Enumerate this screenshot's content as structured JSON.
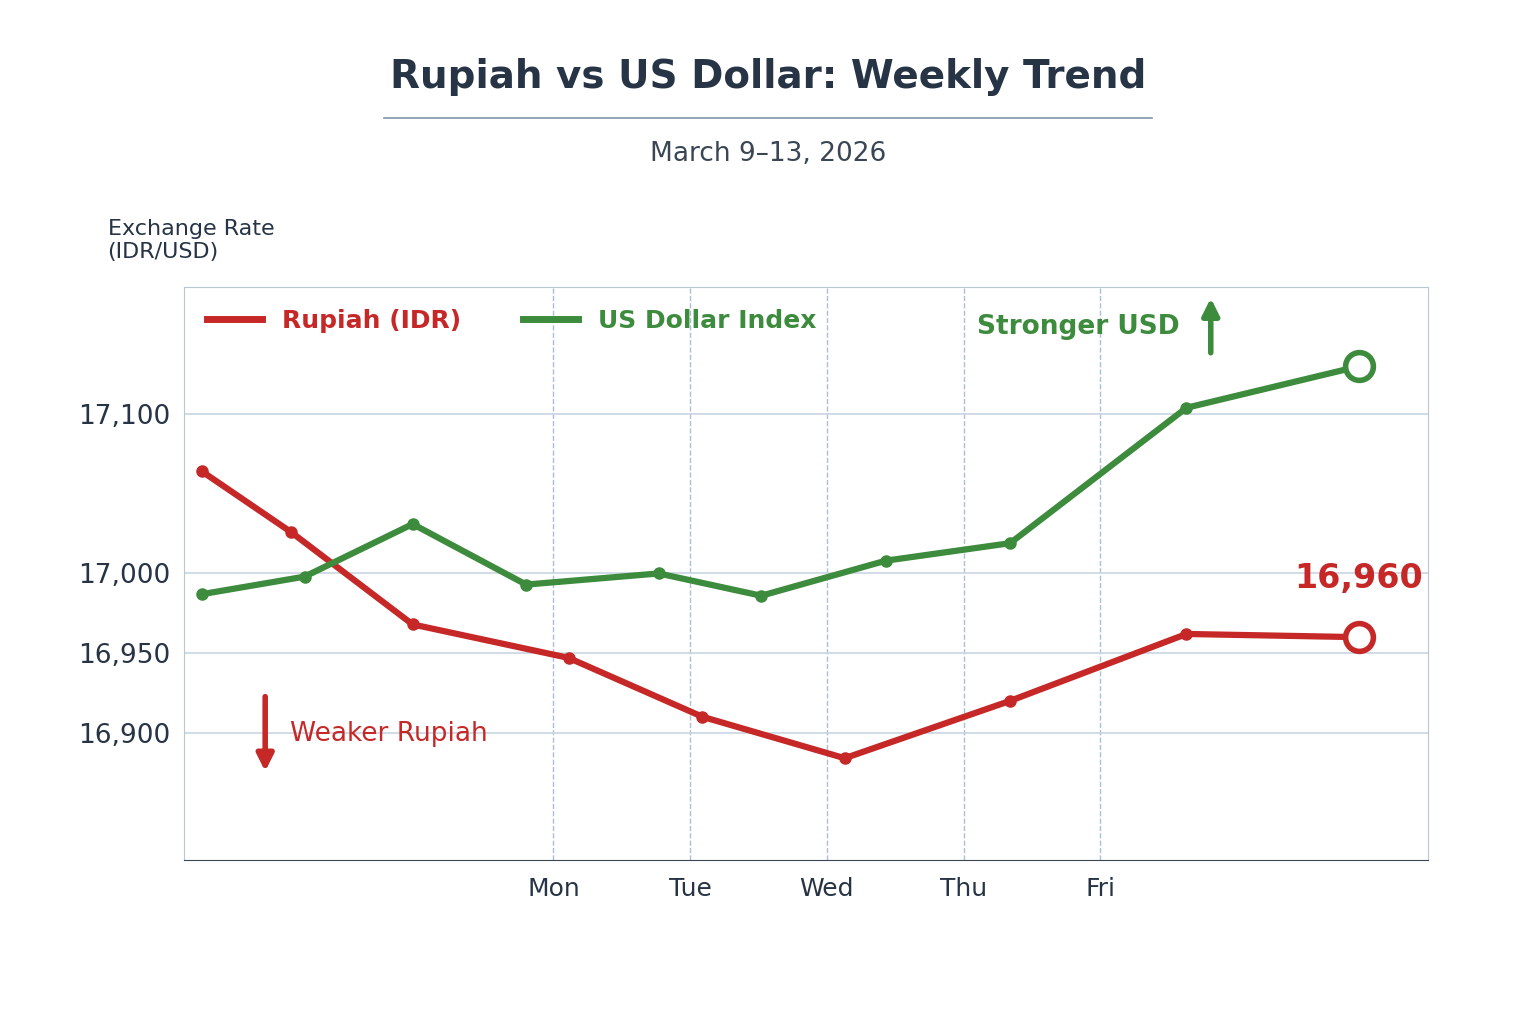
{
  "chart_data": {
    "type": "line",
    "title": "Rupiah vs US Dollar: Weekly Trend",
    "subtitle": "March 9–13, 2026",
    "y_label": "Exchange Rate\n(IDR/USD)",
    "series": [
      {
        "name": "Rupiah (IDR)",
        "color": "#c62828",
        "marker": "o",
        "line_style": "solid",
        "x": [
          -2.57,
          -1.92,
          -1.03,
          0.11,
          1.09,
          2.13,
          3.34,
          4.63,
          5.89
        ],
        "values": [
          17064,
          17026,
          16968,
          16947,
          16910,
          16884,
          16920,
          16962,
          16960
        ]
      },
      {
        "name": "US Dollar Index",
        "color": "#3d8b3d",
        "marker": "o",
        "line_style": "solid",
        "x": [
          -2.57,
          -1.82,
          -1.03,
          -0.2,
          0.77,
          1.52,
          2.43,
          3.34,
          4.63,
          5.89
        ],
        "values": [
          16987,
          16998,
          17031,
          16993,
          17000,
          16986,
          17008,
          17019,
          17104,
          17130
        ]
      }
    ],
    "xlim": [
      -2.7,
      6.4
    ],
    "xticks": [
      {
        "value": 0,
        "label": "Mon"
      },
      {
        "value": 1,
        "label": "Tue"
      },
      {
        "value": 2,
        "label": "Wed"
      },
      {
        "value": 3,
        "label": "Thu"
      },
      {
        "value": 4,
        "label": "Fri"
      }
    ],
    "ylim": [
      16820,
      17180
    ],
    "yticks": [
      {
        "value": 16900,
        "label": "16,900"
      },
      {
        "value": 16950,
        "label": "16,950"
      },
      {
        "value": 17000,
        "label": "17,000"
      },
      {
        "value": 17100,
        "label": "17,100"
      }
    ],
    "grid": true,
    "legend": "upper left",
    "annotations": [
      {
        "text": "Stronger USD",
        "color": "#3d8b3d"
      },
      {
        "text": "Weaker Rupiah",
        "color": "#c62828"
      },
      {
        "text": "16,960",
        "color": "#c62828"
      }
    ]
  }
}
